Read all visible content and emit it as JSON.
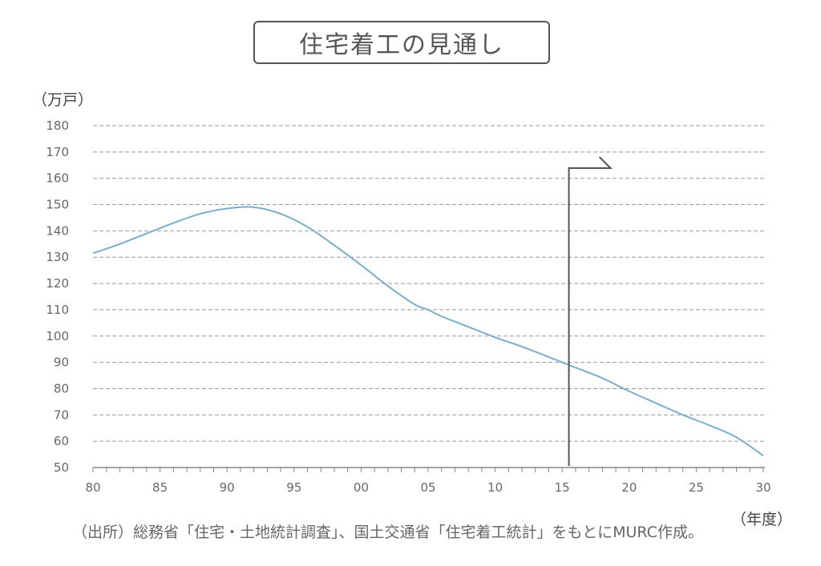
{
  "header": {
    "title": "住宅着工の見通し"
  },
  "units": {
    "y": "（万戸）",
    "x": "（年度）"
  },
  "footer": {
    "source": "（出所）総務省「住宅・土地統計調査」、国土交通省「住宅着工統計」をもとにMURC作成。"
  },
  "chart_data": {
    "type": "line",
    "title": "住宅着工の見通し",
    "xlabel": "（年度）",
    "ylabel": "（万戸）",
    "ylim": [
      50,
      180
    ],
    "xlim": [
      1980,
      2030
    ],
    "grid": true,
    "yticks": [
      "50",
      "60",
      "70",
      "80",
      "90",
      "100",
      "110",
      "120",
      "130",
      "140",
      "150",
      "160",
      "170",
      "180"
    ],
    "xticks": [
      {
        "value": 1980,
        "label": "80"
      },
      {
        "value": 1985,
        "label": "85"
      },
      {
        "value": 1990,
        "label": "90"
      },
      {
        "value": 1995,
        "label": "95"
      },
      {
        "value": 2000,
        "label": "00"
      },
      {
        "value": 2005,
        "label": "05"
      },
      {
        "value": 2010,
        "label": "10"
      },
      {
        "value": 2015,
        "label": "15"
      },
      {
        "value": 2020,
        "label": "20"
      },
      {
        "value": 2025,
        "label": "25"
      },
      {
        "value": 2030,
        "label": "30"
      }
    ],
    "series": [
      {
        "color": "#7aaecb",
        "x": [
          1980,
          1982,
          1984,
          1986,
          1988,
          1990,
          1992,
          1994,
          1996,
          1998,
          2000,
          2002,
          2004,
          2005,
          2006,
          2008,
          2010,
          2012,
          2014,
          2016,
          2018,
          2020,
          2022,
          2024,
          2026,
          2028,
          2030
        ],
        "y": [
          131.5,
          135,
          139,
          143,
          146.5,
          148.5,
          149,
          146.5,
          141.5,
          134.5,
          127,
          119,
          112,
          110,
          107.5,
          103.5,
          99.5,
          96,
          92,
          88,
          84,
          79,
          74.5,
          70,
          66,
          61.5,
          54.5
        ]
      }
    ],
    "marker": {
      "x": 2015.5,
      "color": "#555555"
    }
  }
}
